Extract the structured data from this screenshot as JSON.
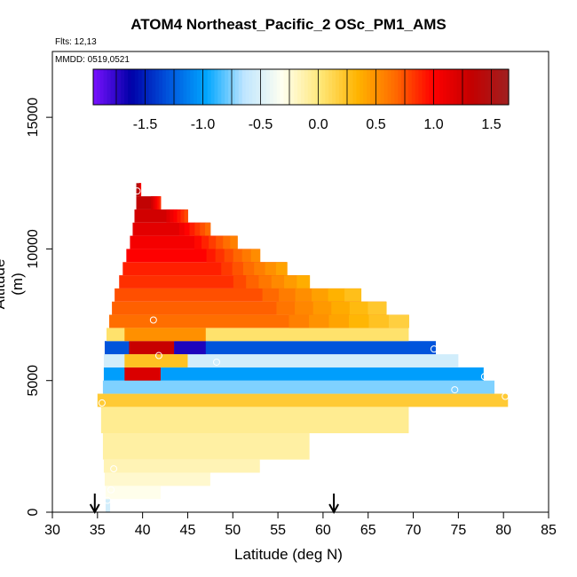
{
  "chart_data": {
    "type": "heatmap",
    "title": "ATOM4 Northeast_Pacific_2 OSc_PM1_AMS",
    "flights_label": "Flts: 12,13",
    "date_label": "MMDD: 0519,0521",
    "xlabel": "Latitude (deg N)",
    "ylabel": "Altitude (m)",
    "xlim": [
      30,
      85
    ],
    "ylim": [
      0,
      17500
    ],
    "x_ticks": [
      "30",
      "35",
      "40",
      "45",
      "50",
      "55",
      "60",
      "65",
      "70",
      "75",
      "80",
      "85"
    ],
    "y_ticks": [
      "0",
      "5000",
      "10000",
      "15000"
    ],
    "colorbar": {
      "range": [
        -1.95,
        1.65
      ],
      "tick_labels": [
        "-1.5",
        "-1.0",
        "-0.5",
        "0.0",
        "0.5",
        "1.0",
        "1.5"
      ],
      "tick_values": [
        -1.5,
        -1.0,
        -0.5,
        0.0,
        0.5,
        1.0,
        1.5
      ],
      "colors": [
        "#7a11ff",
        "#0000a8",
        "#0055dd",
        "#00a6ff",
        "#bfe6ff",
        "#fffff0",
        "#ffe87a",
        "#ffb400",
        "#ff6a00",
        "#ff0000",
        "#c40000",
        "#a02020"
      ]
    },
    "layers": [
      {
        "y0": 0,
        "y1": 500,
        "x0": 35.9,
        "x1": 36.4,
        "value": -0.55
      },
      {
        "y0": 500,
        "y1": 1000,
        "x0": 35.9,
        "x1": 42.0,
        "value": -0.3
      },
      {
        "y0": 1000,
        "y1": 1500,
        "x0": 35.8,
        "x1": 47.5,
        "value": -0.22
      },
      {
        "y0": 1500,
        "y1": 2000,
        "x0": 35.7,
        "x1": 53.0,
        "value": -0.15
      },
      {
        "y0": 2000,
        "y1": 3000,
        "x0": 35.6,
        "x1": 58.5,
        "value": -0.1
      },
      {
        "y0": 3000,
        "y1": 4000,
        "x0": 35.4,
        "x1": 69.5,
        "value": -0.05
      },
      {
        "y0": 4000,
        "y1": 4500,
        "x0": 35.0,
        "x1": 80.5,
        "value": 0.2
      },
      {
        "y0": 4500,
        "y1": 5000,
        "x0": 35.6,
        "x1": 79.0,
        "value": -0.75
      },
      {
        "y0": 5000,
        "y1": 5500,
        "x0": 35.7,
        "x1": 77.8,
        "value": -1.0
      },
      {
        "y0": 5500,
        "y1": 6000,
        "x0": 35.7,
        "x1": 75.0,
        "value": -0.55
      },
      {
        "y0": 6000,
        "y1": 6500,
        "x0": 35.8,
        "x1": 72.5,
        "value": -1.3
      },
      {
        "y0": 6500,
        "y1": 7000,
        "x0": 36.0,
        "x1": 69.5,
        "value": 0.05
      },
      {
        "y0": 7000,
        "y1": 7500,
        "x0": 36.3,
        "x1": 69.5,
        "value": 0.65
      },
      {
        "y0": 7500,
        "y1": 8000,
        "x0": 36.6,
        "x1": 67.0,
        "value": 0.7
      },
      {
        "y0": 8000,
        "y1": 8500,
        "x0": 36.9,
        "x1": 64.2,
        "value": 0.75
      },
      {
        "y0": 8500,
        "y1": 9000,
        "x0": 37.4,
        "x1": 58.5,
        "value": 0.85
      },
      {
        "y0": 9000,
        "y1": 9500,
        "x0": 37.8,
        "x1": 56.0,
        "value": 0.9
      },
      {
        "y0": 9500,
        "y1": 10000,
        "x0": 38.2,
        "x1": 53.0,
        "value": 1.0
      },
      {
        "y0": 10000,
        "y1": 10500,
        "x0": 38.6,
        "x1": 50.5,
        "value": 1.05
      },
      {
        "y0": 10500,
        "y1": 11000,
        "x0": 38.9,
        "x1": 47.5,
        "value": 1.15
      },
      {
        "y0": 11000,
        "y1": 11500,
        "x0": 39.1,
        "x1": 45.0,
        "value": 1.25
      },
      {
        "y0": 11500,
        "y1": 12000,
        "x0": 39.3,
        "x1": 42.0,
        "value": 1.35
      },
      {
        "y0": 12000,
        "y1": 12500,
        "x0": 39.3,
        "x1": 39.8,
        "value": 1.45
      }
    ],
    "bands": [
      {
        "y0": 6000,
        "y1": 6500,
        "x0": 38.5,
        "x1": 43.5,
        "value": 1.3
      },
      {
        "y0": 6000,
        "y1": 6500,
        "x0": 43.5,
        "x1": 47.0,
        "value": -1.7
      },
      {
        "y0": 5000,
        "y1": 5500,
        "x0": 38.0,
        "x1": 42.0,
        "value": 1.2
      },
      {
        "y0": 5500,
        "y1": 6000,
        "x0": 38.0,
        "x1": 45.0,
        "value": 0.25
      },
      {
        "y0": 6500,
        "y1": 7000,
        "x0": 38.0,
        "x1": 47.0,
        "value": 0.5
      }
    ],
    "points": [
      {
        "lat": 39.4,
        "alt": 12200
      },
      {
        "lat": 41.2,
        "alt": 7300
      },
      {
        "lat": 41.8,
        "alt": 5950
      },
      {
        "lat": 48.2,
        "alt": 5700
      },
      {
        "lat": 72.3,
        "alt": 6200
      },
      {
        "lat": 74.6,
        "alt": 4650
      },
      {
        "lat": 77.9,
        "alt": 5150
      },
      {
        "lat": 80.2,
        "alt": 4400
      },
      {
        "lat": 35.5,
        "alt": 4150
      },
      {
        "lat": 36.8,
        "alt": 1650
      },
      {
        "lat": 36.5,
        "alt": 850
      },
      {
        "lat": 36.1,
        "alt": 450
      }
    ],
    "markers": [
      {
        "lat": 34.7,
        "symbol": "down-arrow"
      },
      {
        "lat": 61.2,
        "symbol": "down-arrow"
      }
    ]
  }
}
